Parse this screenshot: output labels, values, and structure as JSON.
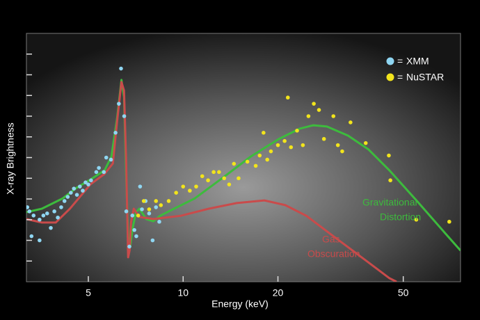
{
  "chart_data": {
    "type": "scatter",
    "xlabel": "Energy (keV)",
    "ylabel": "X-ray Brightness",
    "log_x": true,
    "xlim": [
      3.18,
      76
    ],
    "xticks": [
      5,
      10,
      20,
      50
    ],
    "ylim": [
      0,
      12
    ],
    "yticks": [
      1,
      2,
      3,
      4,
      5,
      6,
      7,
      8,
      9,
      10,
      11
    ],
    "series": [
      {
        "name": "XMM",
        "color": "#8fd6f2",
        "kind": "points",
        "x": [
          3.2,
          3.25,
          3.35,
          3.5,
          3.6,
          3.7,
          3.8,
          3.9,
          4.0,
          4.1,
          4.2,
          4.3,
          4.4,
          4.5,
          4.6,
          4.7,
          4.8,
          4.9,
          5.0,
          5.1,
          5.3,
          5.4,
          5.6,
          5.7,
          5.9,
          6.1,
          6.25,
          6.35,
          6.5,
          6.6,
          6.75,
          6.9,
          7.0,
          7.1,
          7.3,
          7.4,
          7.6,
          7.8,
          8.0,
          8.2,
          8.4,
          3.3,
          3.5
        ],
        "values": [
          3.6,
          3.4,
          3.2,
          3.0,
          3.2,
          3.3,
          2.6,
          3.4,
          3.1,
          3.6,
          3.9,
          4.1,
          4.3,
          4.5,
          4.2,
          4.6,
          4.4,
          4.8,
          4.7,
          4.9,
          5.3,
          5.5,
          5.3,
          6.0,
          5.9,
          7.2,
          8.6,
          10.3,
          8.0,
          3.4,
          1.7,
          3.2,
          2.5,
          2.2,
          4.6,
          3.5,
          3.9,
          3.3,
          2.0,
          3.6,
          2.9,
          2.2,
          2.0
        ]
      },
      {
        "name": "NuSTAR",
        "color": "#f2e41c",
        "kind": "points",
        "x": [
          7.2,
          7.5,
          7.8,
          8.2,
          8.5,
          9,
          9.5,
          10,
          10.5,
          11,
          11.5,
          12,
          12.5,
          13,
          13.5,
          14,
          14.5,
          15,
          16,
          17,
          17.5,
          18,
          18.5,
          19,
          20,
          21,
          21.5,
          22,
          23,
          24,
          25,
          26,
          27,
          28,
          30,
          31,
          32,
          34,
          38,
          45,
          45.5,
          55,
          70
        ],
        "values": [
          3.2,
          3.9,
          3.5,
          3.9,
          3.7,
          3.9,
          4.3,
          4.6,
          4.4,
          4.6,
          5.1,
          4.9,
          5.3,
          5.3,
          5.0,
          4.7,
          5.7,
          5.0,
          5.8,
          5.6,
          6.1,
          7.2,
          5.9,
          6.3,
          6.6,
          6.8,
          8.9,
          6.5,
          7.3,
          6.6,
          8.0,
          8.6,
          8.3,
          6.9,
          8.0,
          6.6,
          6.3,
          7.7,
          6.7,
          6.1,
          4.9,
          3.0,
          2.9
        ]
      },
      {
        "label": [
          "Gravitational",
          "Distortion"
        ],
        "color": "#3dbb3d",
        "kind": "line",
        "x": [
          3.18,
          3.56,
          4.15,
          4.59,
          5.08,
          5.63,
          5.92,
          6.17,
          6.37,
          6.49,
          6.59,
          6.69,
          6.79,
          6.9,
          7.08,
          7.26,
          7.64,
          8.04,
          8.46,
          9.36,
          10.9,
          13.4,
          16.4,
          20.1,
          23.4,
          25.9,
          28.6,
          33.4,
          38.8,
          45.2,
          55.5,
          67.9,
          76
        ],
        "values": [
          3.36,
          3.53,
          4.03,
          4.54,
          4.94,
          5.38,
          6.05,
          7.9,
          9.75,
          8.91,
          5.21,
          2.18,
          1.68,
          2.52,
          3.36,
          3.53,
          3.03,
          2.92,
          3.19,
          3.53,
          4.03,
          5.04,
          6.05,
          6.89,
          7.39,
          7.56,
          7.5,
          7.06,
          6.39,
          5.38,
          3.87,
          2.35,
          1.51
        ]
      },
      {
        "label": [
          "Gas",
          "Obscuration"
        ],
        "color": "#c94b4b",
        "kind": "line",
        "x": [
          3.18,
          3.56,
          3.94,
          4.37,
          5.08,
          5.63,
          5.98,
          6.17,
          6.37,
          6.49,
          6.59,
          6.69,
          6.76,
          6.83,
          6.97,
          7.26,
          8.04,
          9.85,
          12.07,
          14.8,
          18.1,
          21.1,
          24.6,
          30.1,
          36.9,
          45.2,
          47.6
        ],
        "values": [
          3.03,
          2.86,
          2.86,
          3.53,
          4.71,
          5.21,
          5.71,
          7.73,
          9.65,
          9.24,
          5.88,
          1.18,
          1.51,
          2.86,
          3.53,
          3.13,
          3.03,
          3.19,
          3.53,
          3.8,
          3.93,
          3.7,
          3.19,
          2.18,
          1.18,
          0.17,
          0
        ]
      }
    ]
  }
}
